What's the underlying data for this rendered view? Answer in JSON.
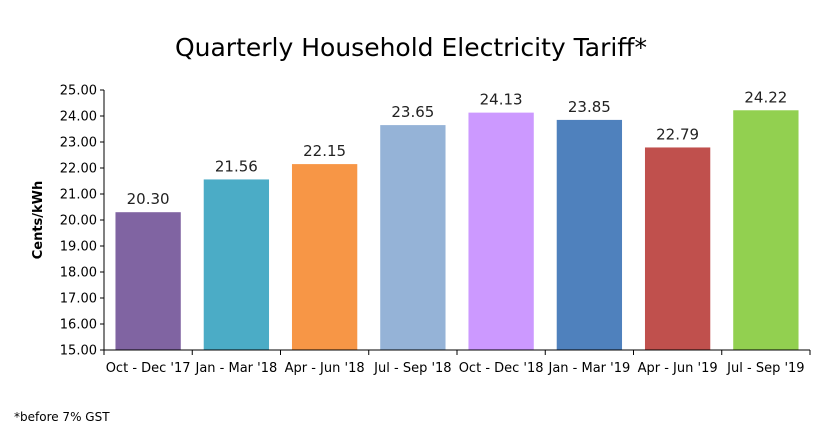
{
  "chart_data": {
    "type": "bar",
    "title": "Quarterly Household Electricity Tariff*",
    "ylabel": "Cents/kWh",
    "xlabel": "",
    "ylim": [
      15.0,
      25.0
    ],
    "ytick_step": 1.0,
    "ytick_labels": [
      "15.00",
      "16.00",
      "17.00",
      "18.00",
      "19.00",
      "20.00",
      "21.00",
      "22.00",
      "23.00",
      "24.00",
      "25.00"
    ],
    "grid": false,
    "legend": "none",
    "categories": [
      "Oct - Dec '17",
      "Jan - Mar '18",
      "Apr - Jun '18",
      "Jul - Sep '18",
      "Oct - Dec '18",
      "Jan - Mar '19",
      "Apr - Jun '19",
      "Jul - Sep '19"
    ],
    "values": [
      20.3,
      21.56,
      22.15,
      23.65,
      24.13,
      23.85,
      22.79,
      24.22
    ],
    "value_labels": [
      "20.30",
      "21.56",
      "22.15",
      "23.65",
      "24.13",
      "23.85",
      "22.79",
      "24.22"
    ],
    "colors": [
      "#8064a2",
      "#4bacc6",
      "#f79646",
      "#95b3d7",
      "#cc99ff",
      "#4f81bd",
      "#c0504d",
      "#92d050"
    ]
  },
  "footnote": "*before 7% GST"
}
